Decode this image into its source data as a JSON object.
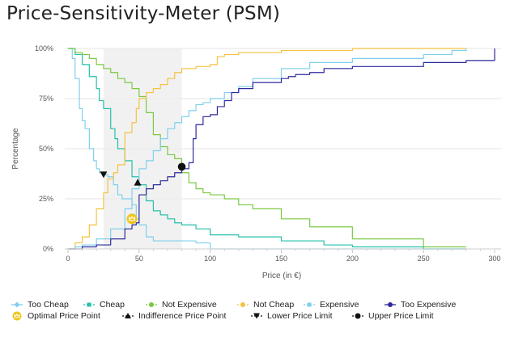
{
  "chart_data": {
    "type": "line",
    "title": "Price-Sensitivity-Meter (PSM)",
    "xlabel": "Price (in €)",
    "ylabel": "Percentage",
    "xlim": [
      0,
      300
    ],
    "ylim": [
      0,
      100
    ],
    "x_ticks": [
      "0",
      "50",
      "100",
      "150",
      "200",
      "250",
      "300"
    ],
    "y_ticks": [
      "0%",
      "25%",
      "50%",
      "75%",
      "100%"
    ],
    "acceptable_range": [
      25,
      80
    ],
    "series": [
      {
        "name": "Too Cheap",
        "color": "#7fd0ec",
        "marker": "diamond",
        "style": "solid",
        "points": [
          [
            0,
            100
          ],
          [
            3,
            95
          ],
          [
            5,
            85
          ],
          [
            8,
            70
          ],
          [
            10,
            64
          ],
          [
            12,
            60
          ],
          [
            15,
            50
          ],
          [
            18,
            44
          ],
          [
            20,
            40
          ],
          [
            22,
            38
          ],
          [
            25,
            37
          ],
          [
            28,
            36
          ],
          [
            32,
            32
          ],
          [
            35,
            27
          ],
          [
            38,
            25
          ],
          [
            42,
            25
          ],
          [
            45,
            22
          ],
          [
            48,
            15
          ],
          [
            50,
            12
          ],
          [
            55,
            6
          ],
          [
            60,
            4
          ],
          [
            70,
            4
          ],
          [
            80,
            4
          ],
          [
            90,
            3
          ],
          [
            100,
            0
          ],
          [
            150,
            0
          ],
          [
            250,
            0
          ],
          [
            280,
            0
          ]
        ]
      },
      {
        "name": "Cheap",
        "color": "#26c0aa",
        "marker": "square",
        "style": "dashed",
        "points": [
          [
            0,
            100
          ],
          [
            5,
            97
          ],
          [
            10,
            92
          ],
          [
            15,
            86
          ],
          [
            20,
            80
          ],
          [
            22,
            74
          ],
          [
            25,
            70
          ],
          [
            30,
            60
          ],
          [
            33,
            55
          ],
          [
            35,
            50
          ],
          [
            40,
            44
          ],
          [
            45,
            36
          ],
          [
            50,
            32
          ],
          [
            55,
            24
          ],
          [
            60,
            19
          ],
          [
            65,
            17
          ],
          [
            70,
            15
          ],
          [
            75,
            13
          ],
          [
            80,
            12
          ],
          [
            90,
            10
          ],
          [
            100,
            7
          ],
          [
            120,
            6
          ],
          [
            150,
            4
          ],
          [
            180,
            2
          ],
          [
            200,
            1
          ],
          [
            250,
            0
          ],
          [
            280,
            0
          ]
        ]
      },
      {
        "name": "Not Expensive",
        "color": "#7ac943",
        "marker": "circle",
        "style": "dashed",
        "points": [
          [
            0,
            100
          ],
          [
            5,
            98
          ],
          [
            10,
            97
          ],
          [
            15,
            95
          ],
          [
            20,
            92
          ],
          [
            25,
            90
          ],
          [
            30,
            88
          ],
          [
            35,
            85
          ],
          [
            40,
            83
          ],
          [
            45,
            80
          ],
          [
            50,
            76
          ],
          [
            55,
            68
          ],
          [
            60,
            57
          ],
          [
            65,
            51
          ],
          [
            70,
            47
          ],
          [
            75,
            45
          ],
          [
            80,
            38
          ],
          [
            85,
            33
          ],
          [
            90,
            30
          ],
          [
            95,
            28
          ],
          [
            100,
            27
          ],
          [
            110,
            25
          ],
          [
            120,
            22
          ],
          [
            130,
            20
          ],
          [
            150,
            15
          ],
          [
            170,
            11
          ],
          [
            200,
            5
          ],
          [
            250,
            1
          ],
          [
            280,
            1
          ]
        ]
      },
      {
        "name": "Not Cheap",
        "color": "#f5c242",
        "marker": "circle",
        "style": "dashed",
        "points": [
          [
            0,
            0
          ],
          [
            5,
            3
          ],
          [
            10,
            6
          ],
          [
            15,
            12
          ],
          [
            20,
            20
          ],
          [
            25,
            28
          ],
          [
            28,
            35
          ],
          [
            32,
            38
          ],
          [
            35,
            42
          ],
          [
            40,
            58
          ],
          [
            45,
            63
          ],
          [
            48,
            70
          ],
          [
            50,
            75
          ],
          [
            55,
            78
          ],
          [
            60,
            80
          ],
          [
            65,
            82
          ],
          [
            70,
            85
          ],
          [
            75,
            88
          ],
          [
            80,
            90
          ],
          [
            90,
            91
          ],
          [
            100,
            92
          ],
          [
            105,
            96
          ],
          [
            110,
            97
          ],
          [
            120,
            98
          ],
          [
            150,
            99
          ],
          [
            200,
            100
          ],
          [
            250,
            100
          ],
          [
            280,
            100
          ]
        ]
      },
      {
        "name": "Expensive",
        "color": "#7fd0ec",
        "marker": "square",
        "style": "dashed",
        "points": [
          [
            0,
            0
          ],
          [
            5,
            1
          ],
          [
            10,
            2
          ],
          [
            20,
            5
          ],
          [
            30,
            10
          ],
          [
            40,
            20
          ],
          [
            45,
            30
          ],
          [
            50,
            40
          ],
          [
            55,
            44
          ],
          [
            60,
            49
          ],
          [
            65,
            55
          ],
          [
            70,
            60
          ],
          [
            75,
            63
          ],
          [
            80,
            66
          ],
          [
            85,
            69
          ],
          [
            90,
            72
          ],
          [
            95,
            73
          ],
          [
            100,
            75
          ],
          [
            110,
            78
          ],
          [
            120,
            81
          ],
          [
            130,
            85
          ],
          [
            150,
            90
          ],
          [
            170,
            93
          ],
          [
            200,
            95
          ],
          [
            250,
            97
          ],
          [
            270,
            99
          ],
          [
            280,
            100
          ]
        ]
      },
      {
        "name": "Too Expensive",
        "color": "#2d2a9b",
        "marker": "circle",
        "style": "solid",
        "points": [
          [
            0,
            0
          ],
          [
            10,
            1
          ],
          [
            20,
            2
          ],
          [
            30,
            5
          ],
          [
            40,
            10
          ],
          [
            45,
            12
          ],
          [
            48,
            13
          ],
          [
            50,
            27
          ],
          [
            55,
            30
          ],
          [
            60,
            32
          ],
          [
            65,
            34
          ],
          [
            70,
            36
          ],
          [
            75,
            38
          ],
          [
            80,
            40
          ],
          [
            85,
            43
          ],
          [
            88,
            55
          ],
          [
            90,
            62
          ],
          [
            95,
            66
          ],
          [
            100,
            67
          ],
          [
            105,
            71
          ],
          [
            110,
            74
          ],
          [
            115,
            78
          ],
          [
            120,
            80
          ],
          [
            130,
            83
          ],
          [
            150,
            85
          ],
          [
            155,
            86
          ],
          [
            160,
            87
          ],
          [
            170,
            88
          ],
          [
            180,
            90
          ],
          [
            200,
            91
          ],
          [
            250,
            93
          ],
          [
            280,
            94
          ],
          [
            300,
            100
          ]
        ]
      }
    ],
    "annotations": [
      {
        "name": "Optimal Price Point",
        "x": 45,
        "y": 15,
        "marker": "crown-circle",
        "color": "#f0c419"
      },
      {
        "name": "Indifference Price Point",
        "x": 49,
        "y": 33,
        "marker": "triangle-up",
        "color": "#111111"
      },
      {
        "name": "Lower Price Limit",
        "x": 25,
        "y": 37,
        "marker": "triangle-down",
        "color": "#111111"
      },
      {
        "name": "Upper Price Limit",
        "x": 80,
        "y": 41,
        "marker": "dot",
        "color": "#111111"
      }
    ],
    "legend_position": "bottom",
    "grid": true
  }
}
